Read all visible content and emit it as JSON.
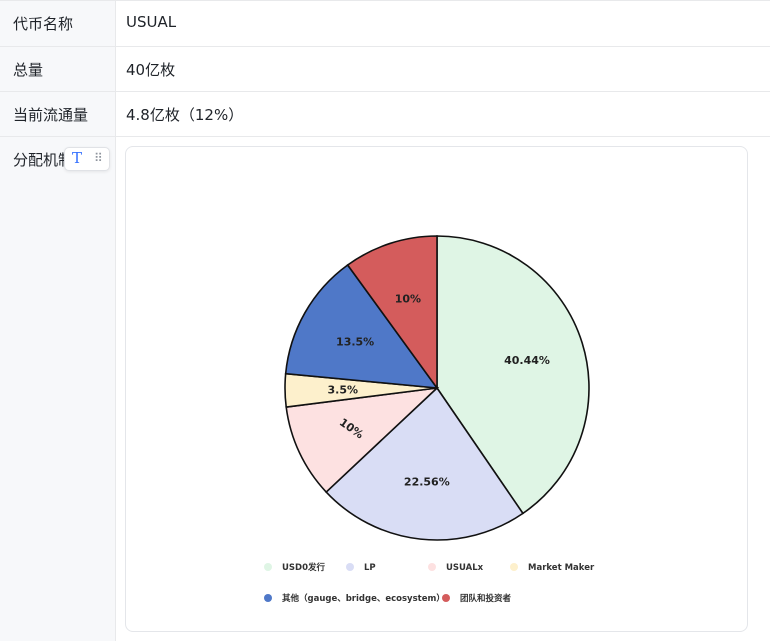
{
  "rows": [
    {
      "label": "代币名称",
      "value": "USUAL"
    },
    {
      "label": "总量",
      "value": "40亿枚"
    },
    {
      "label": "当前流通量",
      "value": "4.8亿枚（12%）"
    },
    {
      "label": "分配机制"
    }
  ],
  "toolbar": {
    "text_icon": "text-format-icon",
    "drag_icon": "drag-handle-icon"
  },
  "chart_data": {
    "type": "pie",
    "slices": [
      {
        "label": "USD0发行",
        "value": 40.44,
        "display": "40.44%",
        "color": "#dff5e5"
      },
      {
        "label": "LP",
        "value": 22.56,
        "display": "22.56%",
        "color": "#d9ddf5"
      },
      {
        "label": "USUALx",
        "value": 10,
        "display": "10%",
        "color": "#fde1e1"
      },
      {
        "label": "Market Maker",
        "value": 3.5,
        "display": "3.5%",
        "color": "#fdf0cc"
      },
      {
        "label": "其他（gauge、bridge、ecosystem）",
        "value": 13.5,
        "display": "13.5%",
        "color": "#4f78c8"
      },
      {
        "label": "团队和投资者",
        "value": 10,
        "display": "10%",
        "color": "#d45c5c"
      }
    ],
    "legend_position": "bottom",
    "start_angle": "top, clockwise"
  }
}
